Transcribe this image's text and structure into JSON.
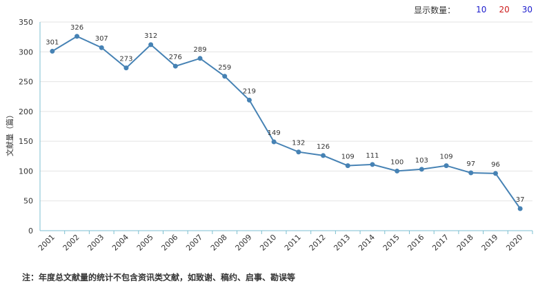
{
  "toolbar": {
    "label": "显示数量：",
    "options": [
      {
        "text": "10",
        "color": "#1a1acc"
      },
      {
        "text": "20",
        "color": "#cc1a1a"
      },
      {
        "text": "30",
        "color": "#1a1acc"
      }
    ]
  },
  "footnote": "注：年度总文献量的统计不包含资讯类文献，如致谢、稿约、启事、勘误等",
  "chart_data": {
    "type": "line",
    "title": "",
    "xlabel": "",
    "ylabel": "文献量（篇）",
    "ylim": [
      0,
      350
    ],
    "yticks": [
      0,
      50,
      100,
      150,
      200,
      250,
      300,
      350
    ],
    "grid": true,
    "line_color": "#4682b4",
    "categories": [
      "2001",
      "2002",
      "2003",
      "2004",
      "2005",
      "2006",
      "2007",
      "2008",
      "2009",
      "2010",
      "2011",
      "2012",
      "2013",
      "2014",
      "2015",
      "2016",
      "2017",
      "2018",
      "2019",
      "2020"
    ],
    "values": [
      301,
      326,
      307,
      273,
      312,
      276,
      289,
      259,
      219,
      149,
      132,
      126,
      109,
      111,
      100,
      103,
      109,
      97,
      96,
      37
    ]
  }
}
